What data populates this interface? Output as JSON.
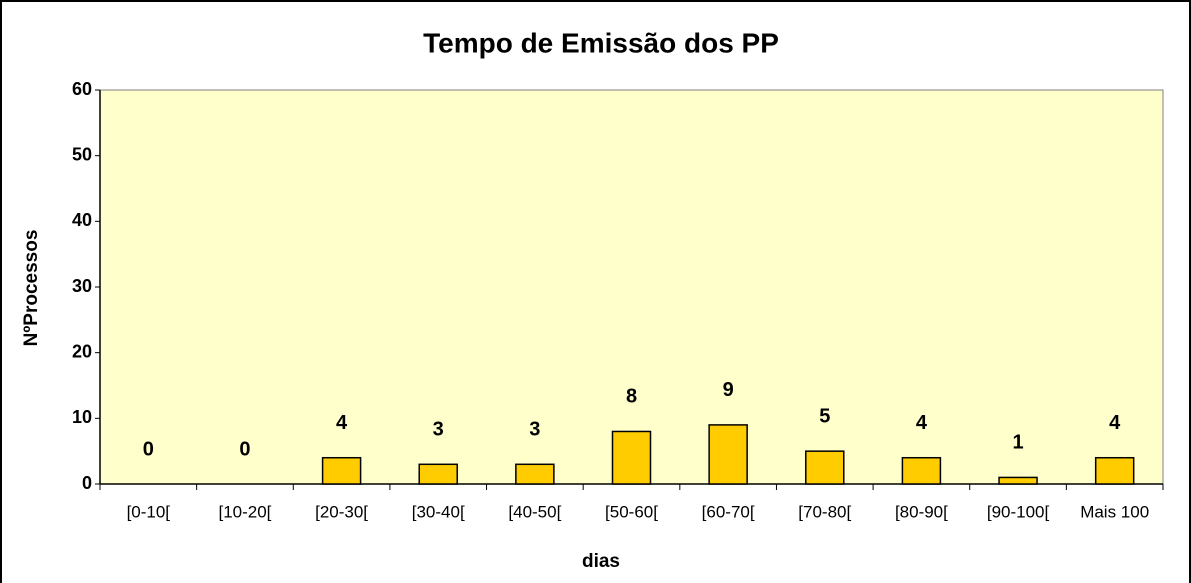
{
  "chart_data": {
    "type": "bar",
    "title": "Tempo de Emissão dos PP",
    "x_label": "dias",
    "y_label": "NºProcessos",
    "categories": [
      "[0-10[",
      "[10-20[",
      "[20-30[",
      "[30-40[",
      "[40-50[",
      "[50-60[",
      "[60-70[",
      "[70-80[",
      "[80-90[",
      "[90-100[",
      "Mais 100"
    ],
    "values": [
      0,
      0,
      4,
      3,
      3,
      8,
      9,
      5,
      4,
      1,
      4
    ],
    "color": "#ffcc00",
    "plot_background": "#ffffcc",
    "ylim": [
      0,
      60
    ],
    "yticks": [
      0,
      10,
      20,
      30,
      40,
      50,
      60
    ],
    "grid": false
  }
}
